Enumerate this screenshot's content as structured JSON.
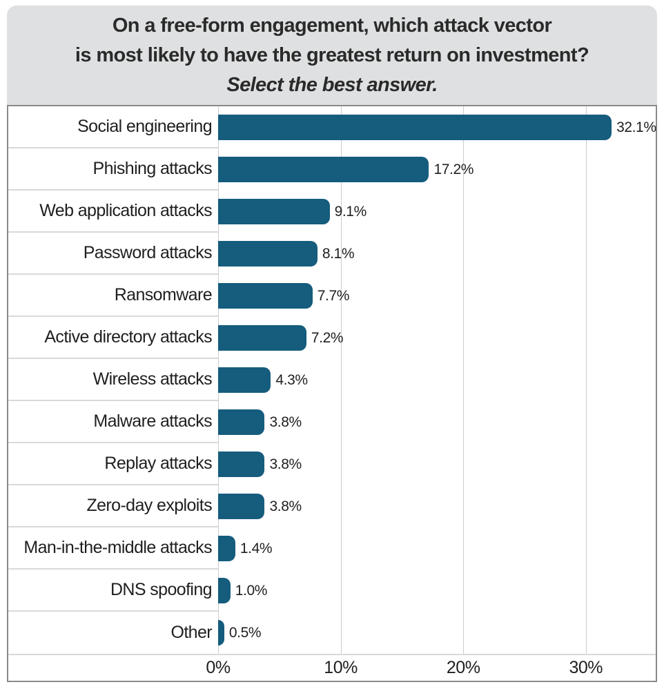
{
  "title": {
    "line1": "On a free-form engagement, which attack vector",
    "line2": "is most likely to have the greatest return on investment?",
    "line3": "Select the best answer."
  },
  "colors": {
    "bar": "#155C7D",
    "title_box_bg": "#DFE0E1",
    "chart_border": "#8A8A8A",
    "gridline": "#CCCCCC",
    "row_divider": "#D9D9D9",
    "text": "#1F1F1F"
  },
  "chart_data": {
    "type": "bar",
    "orientation": "horizontal",
    "title": "On a free-form engagement, which attack vector is most likely to have the greatest return on investment? Select the best answer.",
    "categories": [
      "Social engineering",
      "Phishing attacks",
      "Web application attacks",
      "Password attacks",
      "Ransomware",
      "Active directory attacks",
      "Wireless attacks",
      "Malware attacks",
      "Replay attacks",
      "Zero-day exploits",
      "Man-in-the-middle attacks",
      "DNS spoofing",
      "Other"
    ],
    "values": [
      32.1,
      17.2,
      9.1,
      8.1,
      7.7,
      7.2,
      4.3,
      3.8,
      3.8,
      3.8,
      1.4,
      1.0,
      0.5
    ],
    "value_labels": [
      "32.1%",
      "17.2%",
      "9.1%",
      "8.1%",
      "7.7%",
      "7.2%",
      "4.3%",
      "3.8%",
      "3.8%",
      "3.8%",
      "1.4%",
      "1.0%",
      "0.5%"
    ],
    "xlabel": "",
    "ylabel": "",
    "xlim": [
      0,
      35.7
    ],
    "tick_values": [
      0,
      10,
      20,
      30
    ],
    "tick_labels": [
      "0%",
      "10%",
      "20%",
      "30%"
    ],
    "grid": "vertical",
    "legend": "none"
  }
}
